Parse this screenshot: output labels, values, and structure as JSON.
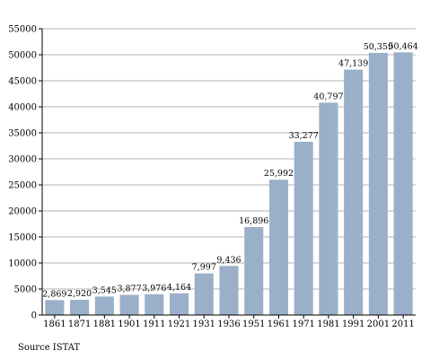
{
  "chart_data": {
    "type": "bar",
    "categories": [
      "1861",
      "1871",
      "1881",
      "1901",
      "1911",
      "1921",
      "1931",
      "1936",
      "1951",
      "1961",
      "1971",
      "1981",
      "1991",
      "2001",
      "2011"
    ],
    "values": [
      2869,
      2920,
      3545,
      3877,
      3976,
      4164,
      7997,
      9436,
      16896,
      25992,
      33277,
      40797,
      47139,
      50359,
      50464
    ],
    "data_labels": [
      "2,869",
      "2,920",
      "3,545",
      "3,877",
      "3,976",
      "4,164",
      "7,997",
      "9,436",
      "16,896",
      "25,992",
      "33,277",
      "40,797",
      "47,139",
      "50,359",
      "50,464"
    ],
    "yticks": [
      "0",
      "5000",
      "10000",
      "15000",
      "20000",
      "25000",
      "30000",
      "35000",
      "40000",
      "45000",
      "50000",
      "55000"
    ],
    "ylim": [
      0,
      55000
    ],
    "title": "",
    "xlabel": "",
    "ylabel": "",
    "grid": true,
    "bar_color": "#9ab0c8"
  },
  "footer": {
    "source": "Source ISTAT"
  }
}
